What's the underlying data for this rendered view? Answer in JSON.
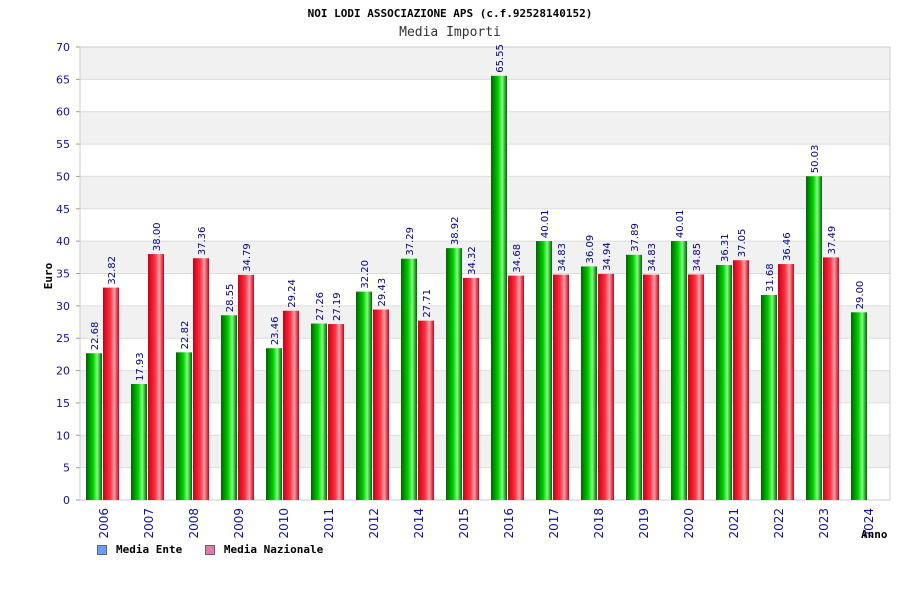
{
  "title": "NOI LODI ASSOCIAZIONE APS (c.f.92528140152)",
  "subtitle": "Media Importi",
  "colors": {
    "ente_dark": "#006400",
    "ente_mid": "#00d000",
    "ente_light": "#7dff7d",
    "naz_dark": "#c80018",
    "naz_mid": "#ff3040",
    "naz_light": "#ffa0a8",
    "legend_ente": "#66a0ff",
    "legend_naz": "#e07aa8"
  },
  "chart_data": {
    "type": "bar",
    "categories": [
      "2006",
      "2007",
      "2008",
      "2009",
      "2010",
      "2011",
      "2012",
      "2014",
      "2015",
      "2016",
      "2017",
      "2018",
      "2019",
      "2020",
      "2021",
      "2022",
      "2023",
      "2024"
    ],
    "series": [
      {
        "name": "Media Ente",
        "values": [
          22.68,
          17.93,
          22.82,
          28.55,
          23.46,
          27.26,
          32.2,
          37.29,
          38.92,
          65.55,
          40.01,
          36.09,
          37.89,
          40.01,
          36.31,
          31.68,
          50.03,
          29.0
        ]
      },
      {
        "name": "Media Nazionale",
        "values": [
          32.82,
          38.0,
          37.36,
          34.79,
          29.24,
          27.19,
          29.43,
          27.71,
          34.32,
          34.68,
          34.83,
          34.94,
          34.83,
          34.85,
          37.05,
          36.46,
          37.49,
          null
        ]
      }
    ],
    "data_labels": [
      [
        "22.68",
        "17.93",
        "22.82",
        "28.55",
        "23.46",
        "27.26",
        "32.20",
        "37.29",
        "38.92",
        "65.55",
        "40.01",
        "36.09",
        "37.89",
        "40.01",
        "36.31",
        "31.68",
        "50.03",
        "29.00"
      ],
      [
        "32.82",
        "38.00",
        "37.36",
        "34.79",
        "29.24",
        "27.19",
        "29.43",
        "27.71",
        "34.32",
        "34.68",
        "34.83",
        "34.94",
        "34.83",
        "34.85",
        "37.05",
        "36.46",
        "37.49",
        null
      ]
    ],
    "xlabel": "Anno",
    "ylabel": "Euro",
    "ylim": [
      0,
      70
    ],
    "yticks": [
      0,
      5,
      10,
      15,
      20,
      25,
      30,
      35,
      40,
      45,
      50,
      55,
      60,
      65,
      70
    ],
    "grid": true,
    "legend": "bottom-left"
  }
}
